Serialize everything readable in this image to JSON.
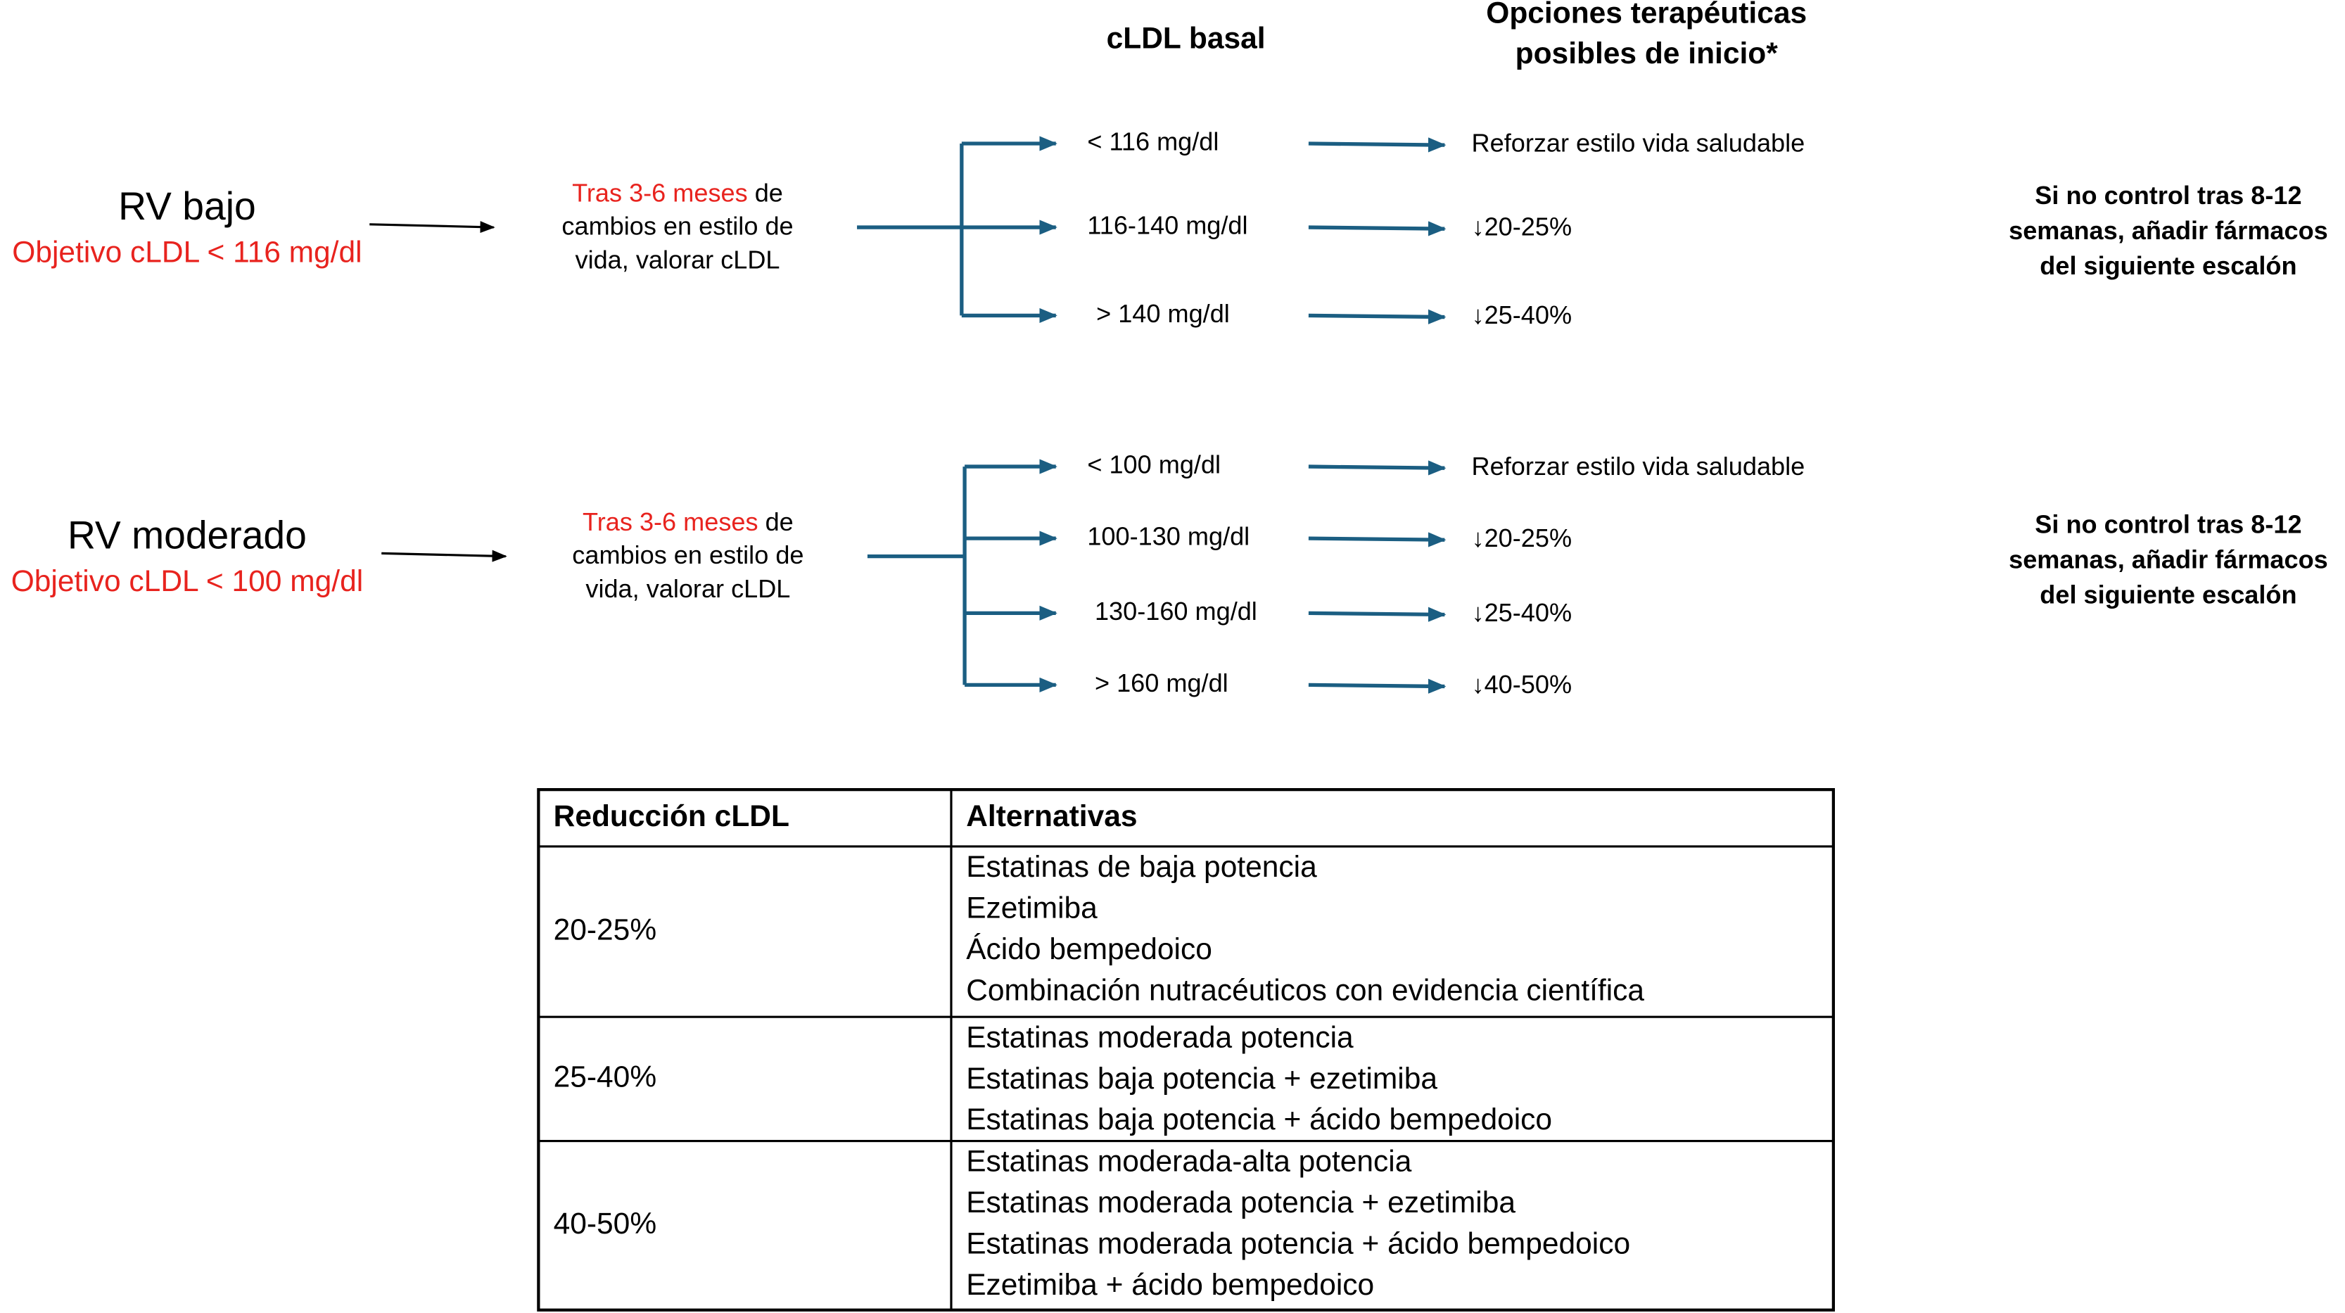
{
  "header": {
    "baseline": "cLDL basal",
    "options": [
      "Opciones terapéuticas",
      "posibles de inicio*"
    ]
  },
  "groups": [
    {
      "risk": "RV bajo",
      "objective": "Objetivo cLDL < 116 mg/dl",
      "step": {
        "highlight": "Tras 3-6 meses",
        "lines": [
          " de",
          "cambios en estilo de",
          "vida, valorar cLDL"
        ]
      },
      "branches": [
        {
          "range": "< 116 mg/dl",
          "option": "Reforzar estilo vida saludable"
        },
        {
          "range": "116-140 mg/dl",
          "option": "↓20-25%"
        },
        {
          "range": "> 140 mg/dl",
          "option": "↓25-40%"
        }
      ],
      "note": [
        "Si no control tras 8-12",
        "semanas, añadir fármacos",
        "del siguiente escalón"
      ]
    },
    {
      "risk": "RV moderado",
      "objective": "Objetivo cLDL < 100 mg/dl",
      "step": {
        "highlight": "Tras 3-6 meses",
        "lines": [
          " de",
          "cambios en estilo de",
          "vida, valorar cLDL"
        ]
      },
      "branches": [
        {
          "range": "< 100 mg/dl",
          "option": "Reforzar estilo vida saludable"
        },
        {
          "range": "100-130 mg/dl",
          "option": "↓20-25%"
        },
        {
          "range": "130-160 mg/dl",
          "option": "↓25-40%"
        },
        {
          "range": "> 160 mg/dl",
          "option": "↓40-50%"
        }
      ],
      "note": [
        "Si no control tras 8-12",
        "semanas, añadir fármacos",
        "del siguiente escalón"
      ]
    }
  ],
  "table": {
    "columns": [
      "Reducción cLDL",
      "Alternativas"
    ],
    "rows": [
      {
        "reduction": "20-25%",
        "items": [
          "Estatinas de baja potencia",
          "Ezetimiba",
          "Ácido bempedoico",
          "Combinación nutracéuticos con evidencia científica"
        ]
      },
      {
        "reduction": "25-40%",
        "items": [
          "Estatinas moderada potencia",
          "Estatinas baja potencia + ezetimiba",
          "Estatinas baja potencia + ácido bempedoico"
        ]
      },
      {
        "reduction": "40-50%",
        "items": [
          "Estatinas moderada-alta potencia",
          "Estatinas moderada potencia + ezetimiba",
          "Estatinas moderada potencia + ácido bempedoico",
          "Ezetimiba + ácido bempedoico"
        ]
      }
    ]
  }
}
